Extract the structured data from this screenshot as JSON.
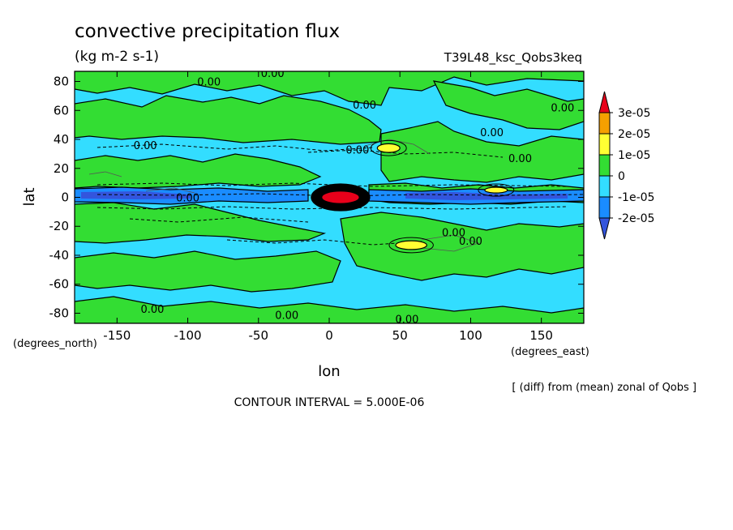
{
  "chart_data": {
    "type": "heatmap",
    "title": "convective precipitation flux",
    "units": "(kg m-2 s-1)",
    "run_label": "T39L48_ksc_Qobs3keq",
    "xlabel": "lon",
    "ylabel": "lat",
    "x_unit_label": "(degrees_east)",
    "y_unit_label": "(degrees_north)",
    "xlim": [
      -180,
      180
    ],
    "ylim": [
      -87,
      87
    ],
    "x_ticks": [
      -150,
      -100,
      -50,
      0,
      50,
      100,
      150
    ],
    "x_tick_labels": [
      "-150",
      "-100",
      "-50",
      "0",
      "50",
      "100",
      "150"
    ],
    "y_ticks": [
      80,
      60,
      40,
      20,
      0,
      -20,
      -40,
      -60,
      -80
    ],
    "y_tick_labels": [
      "80",
      "60",
      "40",
      "20",
      "0",
      "-20",
      "-40",
      "-60",
      "-80"
    ],
    "colorbar": {
      "levels": [
        "3e-05",
        "2e-05",
        "1e-05",
        "0",
        "-1e-05",
        "-2e-05"
      ],
      "colors": [
        "#e8001a",
        "#f5a000",
        "#ffff33",
        "#33dd33",
        "#33ddff",
        "#1a8cff",
        "#3355dd"
      ]
    },
    "contour_labels": [
      {
        "text": "0.00",
        "lon": -85,
        "lat": 80
      },
      {
        "text": "0.00",
        "lon": -40,
        "lat": 86
      },
      {
        "text": "0.00",
        "lon": 25,
        "lat": 64
      },
      {
        "text": "0.00",
        "lon": 165,
        "lat": 62
      },
      {
        "text": "0.00",
        "lon": 115,
        "lat": 45
      },
      {
        "text": "0.00",
        "lon": -130,
        "lat": 36
      },
      {
        "text": "0.00",
        "lon": 20,
        "lat": 33
      },
      {
        "text": "0.00",
        "lon": 135,
        "lat": 27
      },
      {
        "text": "0.00",
        "lon": -100,
        "lat": 0
      },
      {
        "text": "0.00",
        "lon": 88,
        "lat": -24
      },
      {
        "text": "0.00",
        "lon": 100,
        "lat": -30
      },
      {
        "text": "0.00",
        "lon": -125,
        "lat": -77
      },
      {
        "text": "0.00",
        "lon": -30,
        "lat": -81
      },
      {
        "text": "0.00",
        "lon": 55,
        "lat": -84
      }
    ],
    "features": [
      {
        "level": "3e-05",
        "lon": 8,
        "lat": 0,
        "rlon": 13,
        "rlat": 4
      },
      {
        "level": "1e-05",
        "lon": 42,
        "lat": 34,
        "rlon": 8,
        "rlat": 3
      },
      {
        "level": "1e-05",
        "lon": 58,
        "lat": -33,
        "rlon": 11,
        "rlat": 3
      },
      {
        "level": "1e-05",
        "lon": 118,
        "lat": 5,
        "rlon": 8,
        "rlat": 2
      },
      {
        "level": "-1e-05",
        "lon": 0,
        "lat": 2,
        "rlon": 180,
        "rlat": 6
      },
      {
        "level": "-2e-05",
        "lon": -120,
        "lat": 1,
        "rlon": 55,
        "rlat": 3
      },
      {
        "level": "-2e-05",
        "lon": 110,
        "lat": 1,
        "rlon": 65,
        "rlat": 3
      }
    ]
  },
  "notes": {
    "contour_interval": "CONTOUR INTERVAL = 5.000E-06",
    "diff_text": "[ (diff) from (mean) zonal of Qobs ]"
  }
}
